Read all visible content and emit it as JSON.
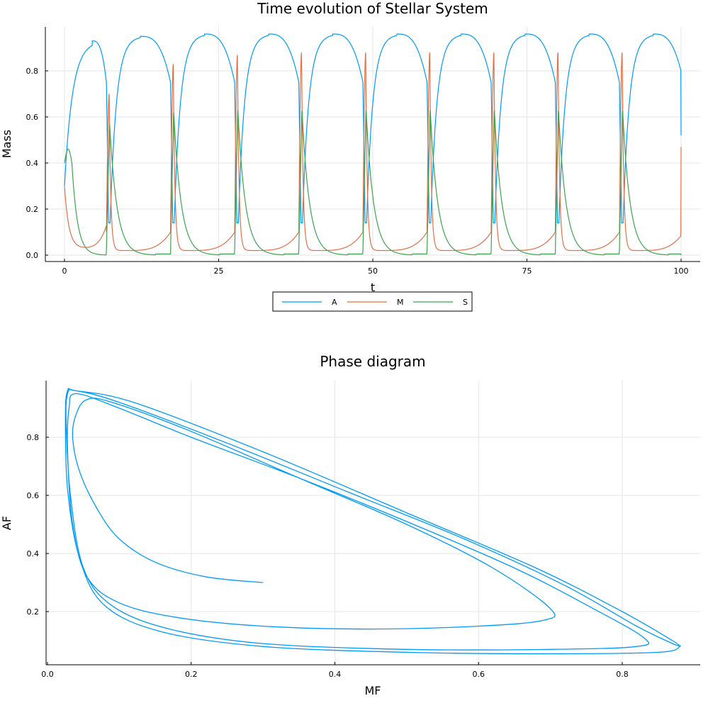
{
  "chart_data": [
    {
      "type": "line",
      "title": "Time evolution of Stellar System",
      "xlabel": "t",
      "ylabel": "Mass",
      "xlim": [
        0,
        100
      ],
      "ylim": [
        0,
        0.96
      ],
      "xticks": [
        "0",
        "25",
        "50",
        "75",
        "100"
      ],
      "yticks": [
        "0.0",
        "0.2",
        "0.4",
        "0.6",
        "0.8"
      ],
      "grid": true,
      "legend_position": "bottom-center outside",
      "series": [
        {
          "name": "A",
          "color": "#009af9",
          "period": 10.4,
          "start_value": 0.3,
          "end_value": 0.52,
          "peak": 0.96,
          "trough": 0.05
        },
        {
          "name": "M",
          "color": "#e26f46",
          "period": 10.4,
          "start_value": 0.3,
          "end_value": 0.47,
          "peak": 0.88,
          "trough": 0.02
        },
        {
          "name": "S",
          "color": "#3da44d",
          "period": 10.4,
          "start_value": 0.4,
          "end_value": 0.0,
          "peak": 0.64,
          "trough": 0.0
        }
      ]
    },
    {
      "type": "line",
      "title": "Phase diagram",
      "xlabel": "MF",
      "ylabel": "AF",
      "xlim": [
        0,
        0.9
      ],
      "ylim": [
        0.03,
        0.98
      ],
      "xticks": [
        "0.0",
        "0.2",
        "0.4",
        "0.6",
        "0.8"
      ],
      "yticks": [
        "0.2",
        "0.4",
        "0.6",
        "0.8"
      ],
      "grid": true,
      "series": [
        {
          "color": "#009af9",
          "x": [
            0.3,
            0.22,
            0.15,
            0.1,
            0.07,
            0.045,
            0.035,
            0.04,
            0.055,
            0.09,
            0.2,
            0.35,
            0.5,
            0.62,
            0.7,
            0.69,
            0.6,
            0.45,
            0.3,
            0.18,
            0.1,
            0.055,
            0.035,
            0.028,
            0.03,
            0.04,
            0.1,
            0.2,
            0.35,
            0.5,
            0.65,
            0.76,
            0.83,
            0.82,
            0.7,
            0.5,
            0.3,
            0.17,
            0.09,
            0.05,
            0.032,
            0.026,
            0.028,
            0.04,
            0.1,
            0.25,
            0.42,
            0.58,
            0.72,
            0.82,
            0.87,
            0.88,
            0.85,
            0.7,
            0.5,
            0.3,
            0.16,
            0.08,
            0.045,
            0.028,
            0.025,
            0.028,
            0.04,
            0.12,
            0.3,
            0.5,
            0.68,
            0.8,
            0.87,
            0.88
          ],
          "y": [
            0.3,
            0.32,
            0.37,
            0.45,
            0.55,
            0.68,
            0.8,
            0.88,
            0.93,
            0.92,
            0.82,
            0.66,
            0.5,
            0.35,
            0.21,
            0.17,
            0.15,
            0.14,
            0.15,
            0.18,
            0.23,
            0.32,
            0.5,
            0.75,
            0.9,
            0.95,
            0.9,
            0.8,
            0.66,
            0.51,
            0.35,
            0.21,
            0.11,
            0.08,
            0.07,
            0.07,
            0.09,
            0.14,
            0.22,
            0.35,
            0.6,
            0.85,
            0.95,
            0.96,
            0.92,
            0.78,
            0.61,
            0.45,
            0.29,
            0.15,
            0.09,
            0.08,
            0.06,
            0.055,
            0.06,
            0.08,
            0.13,
            0.22,
            0.38,
            0.62,
            0.87,
            0.96,
            0.96,
            0.92,
            0.75,
            0.54,
            0.35,
            0.2,
            0.1,
            0.08
          ]
        }
      ]
    }
  ]
}
